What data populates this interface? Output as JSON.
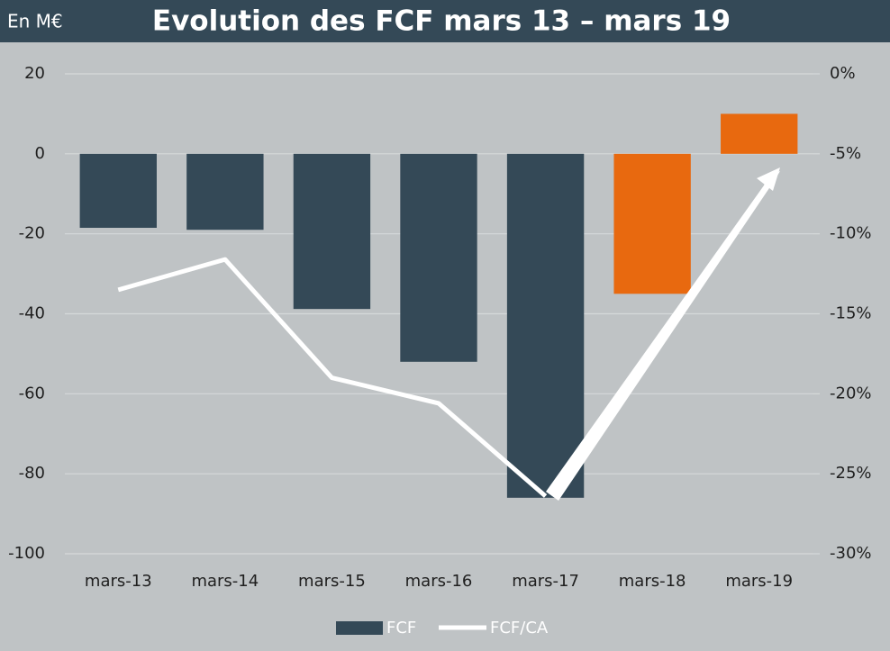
{
  "chart_data": {
    "type": "bar",
    "title": "Evolution des FCF mars 13 – mars 19",
    "unit_label": "En M€",
    "categories": [
      "mars-13",
      "mars-14",
      "mars-15",
      "mars-16",
      "mars-17",
      "mars-18",
      "mars-19"
    ],
    "series": [
      {
        "name": "FCF",
        "type": "bar",
        "color": "#344957",
        "colors": [
          "#344957",
          "#344957",
          "#344957",
          "#344957",
          "#344957",
          "#e8690f",
          "#e8690f"
        ],
        "values": [
          -18.5,
          -19,
          -38.8,
          -52,
          -86,
          -35,
          10
        ]
      },
      {
        "name": "FCF/CA",
        "type": "line",
        "axis": "y2",
        "color": "#ffffff",
        "values": [
          -13.5,
          -11.6,
          -19,
          -20.6,
          -26.4,
          null,
          null
        ]
      }
    ],
    "ylim": [
      -100,
      20
    ],
    "yticks": [
      -100,
      -80,
      -60,
      -40,
      -20,
      0,
      20
    ],
    "y2lim": [
      -30,
      0
    ],
    "y2ticks": [
      {
        "value": -30,
        "label": "-30%"
      },
      {
        "value": -25,
        "label": "-25%"
      },
      {
        "value": -20,
        "label": "-20%"
      },
      {
        "value": -15,
        "label": "-15%"
      },
      {
        "value": -10,
        "label": "-10%"
      },
      {
        "value": -5,
        "label": "-5%"
      },
      {
        "value": 0,
        "label": "0%"
      }
    ],
    "grid": true,
    "legend": "bottom"
  }
}
